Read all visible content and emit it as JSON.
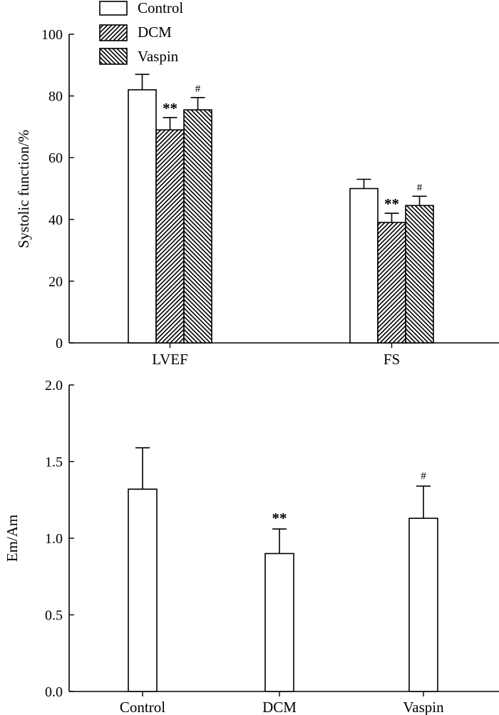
{
  "chart_data": [
    {
      "type": "bar",
      "id": "systolic",
      "categories": [
        "LVEF",
        "FS"
      ],
      "series": [
        {
          "name": "Control",
          "pattern": "none",
          "values": [
            82,
            50
          ],
          "errors": [
            5,
            3
          ],
          "annotations": [
            "",
            ""
          ]
        },
        {
          "name": "DCM",
          "pattern": "diag-right",
          "values": [
            69,
            39
          ],
          "errors": [
            4,
            3
          ],
          "annotations": [
            "**",
            "**"
          ]
        },
        {
          "name": "Vaspin",
          "pattern": "diag-left",
          "values": [
            75.5,
            44.5
          ],
          "errors": [
            4,
            3
          ],
          "annotations": [
            "#",
            "#"
          ]
        }
      ],
      "ylabel": "Systolic function/%",
      "xlabel": "",
      "ylim": [
        0,
        100
      ],
      "yticks": [
        0,
        20,
        40,
        60,
        80,
        100
      ],
      "ytick_labels": [
        "0",
        "20",
        "40",
        "60",
        "80",
        "100"
      ],
      "legend": {
        "placement": "top-left",
        "entries": [
          "Control",
          "DCM",
          "Vaspin"
        ]
      }
    },
    {
      "type": "bar",
      "id": "em-am",
      "categories": [
        "Control",
        "DCM",
        "Vaspin"
      ],
      "values": [
        1.32,
        0.9,
        1.13
      ],
      "errors": [
        0.27,
        0.16,
        0.21
      ],
      "annotations": [
        "",
        "**",
        "#"
      ],
      "ylabel": "Em/Am",
      "xlabel": "",
      "ylim": [
        0,
        2.0
      ],
      "yticks": [
        0.0,
        0.5,
        1.0,
        1.5,
        2.0
      ],
      "ytick_labels": [
        "0.0",
        "0.5",
        "1.0",
        "1.5",
        "2.0"
      ]
    }
  ]
}
